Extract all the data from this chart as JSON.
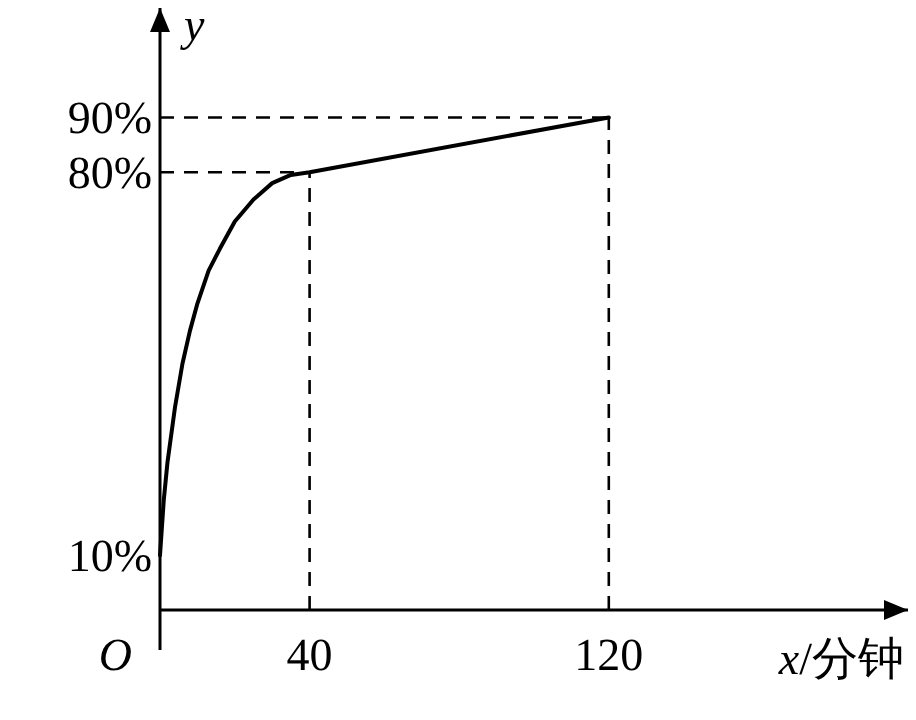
{
  "chart_data": {
    "type": "line",
    "xlabel": "*x*/分钟",
    "ylabel": "y",
    "xlim": [
      0,
      200
    ],
    "ylim": [
      0,
      110
    ],
    "xticks": [
      40,
      120
    ],
    "yticks": [
      {
        "value": 10,
        "label": "10%"
      },
      {
        "value": 80,
        "label": "80%"
      },
      {
        "value": 90,
        "label": "90%"
      }
    ],
    "series": [
      {
        "color": "#000000",
        "x": [
          0,
          1,
          2,
          4,
          6,
          8,
          10,
          13,
          16,
          20,
          25,
          30,
          35,
          40,
          120
        ],
        "values": [
          10,
          20,
          27,
          37,
          45,
          51,
          56,
          62,
          66,
          71,
          75,
          78,
          79.5,
          80,
          90
        ]
      }
    ],
    "ref_lines": [
      {
        "axis": "x",
        "value": 40,
        "line_style": "dashed"
      },
      {
        "axis": "y",
        "value": 80,
        "line_style": "dashed"
      },
      {
        "axis": "x",
        "value": 120,
        "line_style": "dashed"
      },
      {
        "axis": "y",
        "value": 90,
        "line_style": "dashed"
      }
    ],
    "annotations": [
      "O"
    ],
    "grid": false,
    "marker": "none",
    "line_style": "solid"
  }
}
